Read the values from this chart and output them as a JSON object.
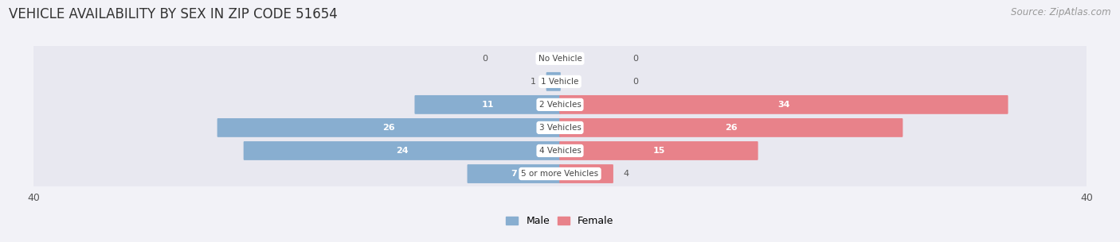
{
  "title": "VEHICLE AVAILABILITY BY SEX IN ZIP CODE 51654",
  "source": "Source: ZipAtlas.com",
  "categories": [
    "No Vehicle",
    "1 Vehicle",
    "2 Vehicles",
    "3 Vehicles",
    "4 Vehicles",
    "5 or more Vehicles"
  ],
  "male_values": [
    0,
    1,
    11,
    26,
    24,
    7
  ],
  "female_values": [
    0,
    0,
    34,
    26,
    15,
    4
  ],
  "male_color": "#88aed0",
  "female_color": "#e8828a",
  "axis_limit": 40,
  "bg_color": "#f2f2f7",
  "row_bg_color": "#e8e8f0",
  "label_color_white": "#ffffff",
  "label_color_dark": "#555555",
  "title_fontsize": 12,
  "source_fontsize": 8.5,
  "bar_height": 0.72,
  "figsize": [
    14.06,
    3.05
  ],
  "dpi": 100,
  "threshold_inside": 6
}
